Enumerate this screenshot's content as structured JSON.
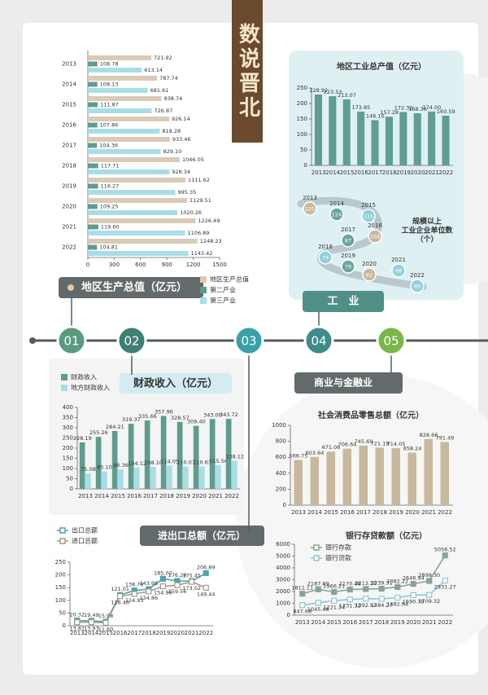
{
  "page": {
    "headline": "数说晋北",
    "timeline": [
      "01",
      "02",
      "03",
      "04",
      "05"
    ],
    "sections": [
      "工　业",
      "商业与金融业"
    ]
  },
  "chart_data": [
    {
      "type": "hbar",
      "title": "地区生产总值（亿元）",
      "categories": [
        "2013",
        "2014",
        "2015",
        "2016",
        "2017",
        "2018",
        "2019",
        "2020",
        "2021",
        "2022"
      ],
      "series": [
        {
          "name": "地区生产总值",
          "color": "#d9cbb7",
          "values": [
            721.92,
            787.74,
            838.74,
            926.14,
            933.46,
            1046.05,
            1111.62,
            1129.51,
            1226.49,
            1248.23
          ],
          "value_labels": [
            "721.92",
            "787.74",
            "838.74",
            "926.14",
            "933.46",
            "1046.05",
            "1111.62",
            "1129.51",
            "1226.49",
            "1248.23"
          ]
        },
        {
          "name": "第二产业",
          "color": "#5e9c8f",
          "values": [
            108.78,
            108.13,
            111.87,
            107.86,
            104.36,
            117.71,
            116.27,
            109.25,
            119.6,
            104.81
          ],
          "value_labels": [
            "108.78",
            "108.13",
            "111.87",
            "107.86",
            "104.36",
            "117.71",
            "116.27",
            "109.25",
            "119.60",
            "104.81"
          ]
        },
        {
          "name": "第三产业",
          "color": "#a9dde6",
          "values": [
            613.14,
            681.61,
            726.87,
            818.28,
            829.1,
            928.34,
            995.35,
            1020.26,
            1106.89,
            1143.42
          ],
          "value_labels": [
            "613.14",
            "681.61",
            "726.87",
            "818.28",
            "829.10",
            "928.34",
            "995.35",
            "1020.26",
            "1106.89",
            "1143.42"
          ]
        }
      ],
      "xlim": [
        0,
        1500
      ],
      "xticks": [
        0,
        300,
        600,
        900,
        1200,
        1500
      ]
    },
    {
      "type": "bar",
      "title": "地区工业总产值（亿元）",
      "categories": [
        "2013",
        "2014",
        "2015",
        "2016",
        "2017",
        "2018",
        "2019",
        "2020",
        "2021",
        "2022"
      ],
      "color": "#5f9e91",
      "values": [
        228.92,
        223.53,
        213.07,
        173.85,
        146.1,
        157.28,
        172.32,
        168.36,
        174,
        160.59
      ],
      "value_labels": [
        "228.92",
        "223.53",
        "213.07",
        "173.85",
        "146.10",
        "157.28",
        "172.32",
        "168.36",
        "174.00",
        "160.59"
      ],
      "ylim": [
        0,
        250
      ],
      "yticks": [
        0,
        50,
        100,
        150,
        200,
        250
      ]
    },
    {
      "type": "bubble",
      "title": [
        "规模以上",
        "工业企业单位数",
        "（个）"
      ],
      "categories": [
        "2013",
        "2014",
        "2015",
        "2016",
        "2017",
        "2018",
        "2019",
        "2020",
        "2021",
        "2022"
      ],
      "values": [
        125,
        124,
        115,
        104,
        87,
        79,
        79,
        82,
        88,
        89
      ],
      "colors": [
        "#c9b89f",
        "#6aa69a",
        "#8fd0dc",
        "#c9b89f",
        "#6aa69a",
        "#8fd0dc",
        "#6aa69a",
        "#c9b89f",
        "#8fd0dc",
        "#8fd0dc"
      ]
    },
    {
      "type": "bar",
      "title": "财政收入（亿元）",
      "categories": [
        "2013",
        "2014",
        "2015",
        "2016",
        "2017",
        "2018",
        "2019",
        "2020",
        "2021",
        "2022"
      ],
      "series": [
        {
          "name": "财政收入",
          "color": "#5e9c8f",
          "values": [
            228.19,
            255.26,
            284.21,
            319.37,
            335.66,
            357.96,
            328.57,
            309.4,
            343,
            343.72
          ],
          "value_labels": [
            "228.19",
            "255.26",
            "284.21",
            "319.37",
            "335.66",
            "357.96",
            "328.57",
            "309.40",
            "343.00",
            "343.72"
          ]
        },
        {
          "name": "地方财政收入",
          "color": "#a9dde6",
          "values": [
            75.08,
            85.1,
            96.36,
            104.12,
            108.1,
            114.05,
            110.07,
            110.63,
            115.56,
            138.12
          ],
          "value_labels": [
            "75.08",
            "85.10",
            "96.36",
            "104.12",
            "108.10",
            "114.05",
            "110.07",
            "110.63",
            "115.56",
            "138.12"
          ]
        }
      ],
      "ylim": [
        0,
        400
      ],
      "yticks": [
        0,
        50,
        100,
        150,
        200,
        250,
        300,
        350,
        400
      ]
    },
    {
      "type": "line",
      "title": "进出口总额（亿元）",
      "categories": [
        "2013",
        "2014",
        "2015",
        "2016",
        "2017",
        "2018",
        "2019",
        "2020",
        "2021",
        "2022"
      ],
      "series": [
        {
          "name": "出口总额",
          "color": "#4fa3ad",
          "values": [
            20.32,
            19.49,
            15.98,
            121.01,
            138.76,
            143.98,
            185.02,
            176.24,
            175.45,
            206.89
          ],
          "value_labels": [
            "20.32",
            "19.49",
            "15.98",
            "121.01",
            "138.76",
            "143.98",
            "185.02",
            "176.24",
            "175.45",
            "206.89"
          ]
        },
        {
          "name": "进口总额",
          "color": "#a89a8a",
          "values": [
            13.81,
            13.93,
            11.6,
            116.46,
            124.93,
            134.86,
            154.96,
            159.56,
            173.02,
            149.44
          ],
          "value_labels": [
            "13.81",
            "13.93",
            "11.60",
            "116.46",
            "124.93",
            "134.86",
            "154.96",
            "159.56",
            "173.02",
            "149.44"
          ]
        }
      ],
      "ylim": [
        0,
        250
      ],
      "yticks": [
        0,
        50,
        100,
        150,
        200,
        250
      ]
    },
    {
      "type": "bar",
      "title": "社会消费品零售总额（亿元）",
      "categories": [
        "2013",
        "2014",
        "2015",
        "2016",
        "2017",
        "2018",
        "2019",
        "2020",
        "2021",
        "2022"
      ],
      "color": "#c8b89e",
      "values": [
        566.75,
        603.64,
        671.06,
        706.64,
        745.69,
        721.19,
        714.05,
        658.24,
        828.66,
        791.49
      ],
      "value_labels": [
        "566.75",
        "603.64",
        "671.06",
        "706.64",
        "745.69",
        "721.19",
        "714.05",
        "658.24",
        "828.66",
        "791.49"
      ],
      "ylim": [
        0,
        1000
      ],
      "yticks": [
        0,
        200,
        400,
        600,
        800,
        1000
      ]
    },
    {
      "type": "line",
      "title": "银行存贷款额（亿元）",
      "categories": [
        "2013",
        "2014",
        "2015",
        "2016",
        "2017",
        "2018",
        "2019",
        "2020",
        "2021",
        "2022"
      ],
      "series": [
        {
          "name": "银行存款",
          "color": "#86a596",
          "values": [
            1811.11,
            2187.89,
            1966.21,
            2170.46,
            2213.1,
            2239.31,
            2382.22,
            2646.94,
            2899.3,
            5056.52
          ],
          "value_labels": [
            "1811.11",
            "2187.89",
            "1966.21",
            "2170.46",
            "2213.10",
            "2239.31",
            "2382.22",
            "2646.94",
            "2899.30",
            "5056.52"
          ]
        },
        {
          "name": "银行贷款",
          "color": "#8fc8d3",
          "values": [
            847.68,
            1045.48,
            1221.14,
            1331.32,
            1392.92,
            1384.27,
            1482.64,
            1690.79,
            1709.32,
            2931.27
          ],
          "value_labels": [
            "847.68",
            "1045.48",
            "1221.14",
            "1331.32",
            "1392.92",
            "1384.27",
            "1482.64",
            "1690.79",
            "1709.32",
            "2931.27"
          ]
        }
      ],
      "ylim": [
        0,
        6000
      ],
      "yticks": [
        0,
        1000,
        2000,
        3000,
        4000,
        5000,
        6000
      ]
    }
  ]
}
